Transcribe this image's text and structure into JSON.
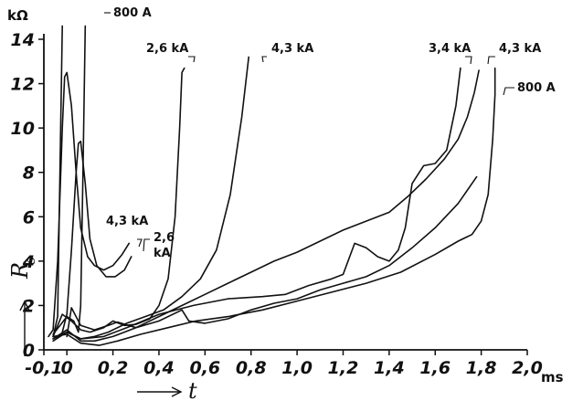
{
  "chart_data": {
    "type": "line",
    "title": "",
    "xlabel": "t",
    "ylabel": "R",
    "ylabel_subscript": "s",
    "x_unit": "ms",
    "y_unit": "kΩ",
    "xlim": [
      -0.1,
      2.0
    ],
    "ylim": [
      0,
      14
    ],
    "x_ticks": [
      -0.1,
      0,
      0.2,
      0.4,
      0.6,
      0.8,
      1.0,
      1.2,
      1.4,
      1.6,
      1.8,
      2.0
    ],
    "x_tick_labels": [
      "-0,1",
      "0",
      "0,2",
      "0,4",
      "0,6",
      "0,8",
      "1,0",
      "1,2",
      "1,4",
      "1,6",
      "1,8",
      "2,0"
    ],
    "y_ticks": [
      0,
      2,
      4,
      6,
      8,
      10,
      12,
      14
    ],
    "y_tick_labels": [
      "0",
      "2",
      "4",
      "6",
      "8",
      "10",
      "12",
      "14"
    ],
    "grid": false,
    "annotations": [
      "800 A",
      "2,6 kA",
      "4,3 kA",
      "3,4 kA",
      "4,3 kA",
      "800 A",
      "4,3 kA",
      "2,6",
      "kA"
    ],
    "series": [
      {
        "name": "800 A",
        "points": [
          [
            -0.06,
            0.6
          ],
          [
            -0.04,
            1.5
          ],
          [
            -0.03,
            8
          ],
          [
            -0.02,
            14.6
          ]
        ]
      },
      {
        "name": "800 A",
        "points": [
          [
            -0.06,
            0.7
          ],
          [
            0.0,
            1.5
          ],
          [
            0.03,
            1.3
          ],
          [
            0.05,
            0.8
          ],
          [
            0.06,
            2
          ],
          [
            0.07,
            8
          ],
          [
            0.08,
            14.6
          ]
        ]
      },
      {
        "name": "4,3 kA",
        "points": [
          [
            -0.08,
            0.6
          ],
          [
            -0.06,
            0.9
          ],
          [
            -0.04,
            4
          ],
          [
            -0.02,
            10
          ],
          [
            -0.01,
            12.3
          ],
          [
            0.0,
            12.5
          ],
          [
            0.02,
            11
          ],
          [
            0.04,
            8
          ],
          [
            0.06,
            5.5
          ],
          [
            0.09,
            4.2
          ],
          [
            0.12,
            3.8
          ],
          [
            0.16,
            3.6
          ],
          [
            0.2,
            3.8
          ],
          [
            0.24,
            4.3
          ],
          [
            0.27,
            4.8
          ]
        ]
      },
      {
        "name": "2,6 kA",
        "points": [
          [
            -0.02,
            0.8
          ],
          [
            0.0,
            1.6
          ],
          [
            0.02,
            4.5
          ],
          [
            0.04,
            8
          ],
          [
            0.05,
            9.3
          ],
          [
            0.06,
            9.4
          ],
          [
            0.08,
            7.5
          ],
          [
            0.1,
            5
          ],
          [
            0.13,
            3.8
          ],
          [
            0.17,
            3.3
          ],
          [
            0.21,
            3.3
          ],
          [
            0.25,
            3.6
          ],
          [
            0.28,
            4.2
          ]
        ]
      },
      {
        "name": "2,6 kA",
        "points": [
          [
            -0.06,
            0.6
          ],
          [
            -0.02,
            1.6
          ],
          [
            0.02,
            1.3
          ],
          [
            0.06,
            0.9
          ],
          [
            0.1,
            0.8
          ],
          [
            0.16,
            1.0
          ],
          [
            0.2,
            1.3
          ],
          [
            0.25,
            1.1
          ],
          [
            0.3,
            1.15
          ],
          [
            0.36,
            1.4
          ],
          [
            0.4,
            2.0
          ],
          [
            0.44,
            3.2
          ],
          [
            0.47,
            6
          ],
          [
            0.49,
            10
          ],
          [
            0.5,
            12.5
          ],
          [
            0.51,
            12.7
          ]
        ]
      },
      {
        "name": "4,3 kA",
        "points": [
          [
            -0.06,
            0.5
          ],
          [
            0.0,
            0.8
          ],
          [
            0.06,
            0.5
          ],
          [
            0.12,
            0.6
          ],
          [
            0.18,
            0.8
          ],
          [
            0.26,
            1.2
          ],
          [
            0.34,
            1.5
          ],
          [
            0.42,
            1.8
          ],
          [
            0.5,
            2.4
          ],
          [
            0.58,
            3.2
          ],
          [
            0.65,
            4.5
          ],
          [
            0.71,
            7
          ],
          [
            0.76,
            10.5
          ],
          [
            0.79,
            13.2
          ]
        ]
      },
      {
        "name": "3,4 kA",
        "points": [
          [
            -0.06,
            0.4
          ],
          [
            0.0,
            0.8
          ],
          [
            0.06,
            0.5
          ],
          [
            0.16,
            0.6
          ],
          [
            0.26,
            1.0
          ],
          [
            0.4,
            1.6
          ],
          [
            0.55,
            2.0
          ],
          [
            0.7,
            2.3
          ],
          [
            0.85,
            2.4
          ],
          [
            0.95,
            2.5
          ],
          [
            1.05,
            2.9
          ],
          [
            1.15,
            3.2
          ],
          [
            1.2,
            3.4
          ],
          [
            1.25,
            4.8
          ],
          [
            1.3,
            4.6
          ],
          [
            1.35,
            4.2
          ],
          [
            1.4,
            4.0
          ],
          [
            1.44,
            4.5
          ],
          [
            1.47,
            5.5
          ],
          [
            1.5,
            7.5
          ],
          [
            1.55,
            8.3
          ],
          [
            1.6,
            8.4
          ],
          [
            1.65,
            9
          ],
          [
            1.69,
            11
          ],
          [
            1.71,
            12.7
          ]
        ]
      },
      {
        "name": "4,3 kA",
        "points": [
          [
            -0.06,
            0.5
          ],
          [
            0.0,
            0.9
          ],
          [
            0.06,
            0.4
          ],
          [
            0.12,
            0.4
          ],
          [
            0.2,
            0.6
          ],
          [
            0.3,
            1.0
          ],
          [
            0.42,
            1.6
          ],
          [
            0.52,
            2.1
          ],
          [
            0.6,
            2.5
          ],
          [
            0.7,
            3.0
          ],
          [
            0.8,
            3.5
          ],
          [
            0.9,
            4.0
          ],
          [
            1.0,
            4.4
          ],
          [
            1.1,
            4.9
          ],
          [
            1.2,
            5.4
          ],
          [
            1.3,
            5.8
          ],
          [
            1.4,
            6.2
          ],
          [
            1.48,
            6.9
          ],
          [
            1.56,
            7.7
          ],
          [
            1.64,
            8.6
          ],
          [
            1.7,
            9.5
          ],
          [
            1.74,
            10.5
          ],
          [
            1.77,
            11.6
          ],
          [
            1.79,
            12.6
          ]
        ]
      },
      {
        "name": "800 A",
        "points": [
          [
            -0.06,
            0.6
          ],
          [
            0.0,
            0.7
          ],
          [
            0.06,
            0.3
          ],
          [
            0.14,
            0.2
          ],
          [
            0.22,
            0.4
          ],
          [
            0.32,
            0.7
          ],
          [
            0.44,
            1.0
          ],
          [
            0.56,
            1.3
          ],
          [
            0.7,
            1.5
          ],
          [
            0.85,
            1.8
          ],
          [
            1.0,
            2.2
          ],
          [
            1.15,
            2.6
          ],
          [
            1.3,
            3.0
          ],
          [
            1.45,
            3.5
          ],
          [
            1.6,
            4.3
          ],
          [
            1.7,
            4.9
          ],
          [
            1.76,
            5.2
          ],
          [
            1.8,
            5.8
          ],
          [
            1.83,
            7
          ],
          [
            1.85,
            9.5
          ],
          [
            1.86,
            11.5
          ],
          [
            1.86,
            12.7
          ]
        ]
      },
      {
        "name": "",
        "points": [
          [
            0.0,
            0.6
          ],
          [
            0.02,
            1.9
          ],
          [
            0.06,
            1.1
          ],
          [
            0.12,
            0.9
          ],
          [
            0.18,
            1.1
          ],
          [
            0.22,
            1.25
          ],
          [
            0.3,
            1.0
          ],
          [
            0.4,
            1.3
          ],
          [
            0.5,
            1.8
          ],
          [
            0.53,
            1.3
          ],
          [
            0.6,
            1.2
          ],
          [
            0.7,
            1.4
          ],
          [
            0.8,
            1.8
          ],
          [
            0.9,
            2.1
          ],
          [
            1.0,
            2.3
          ],
          [
            1.1,
            2.7
          ],
          [
            1.2,
            3.0
          ],
          [
            1.3,
            3.3
          ],
          [
            1.4,
            3.8
          ],
          [
            1.5,
            4.6
          ],
          [
            1.6,
            5.5
          ],
          [
            1.7,
            6.6
          ],
          [
            1.78,
            7.8
          ]
        ]
      }
    ],
    "labels": {
      "top_800a": "800 A",
      "lbl_26ka": "2,6 kA",
      "lbl_43ka_mid": "4,3 kA",
      "lbl_34ka": "3,4 kA",
      "lbl_43ka_right": "4,3 kA",
      "lbl_800a_right": "800 A",
      "lbl_43ka_low": "4,3 kA",
      "lbl_26_low": "2,6",
      "lbl_ka_low": "kA"
    }
  }
}
